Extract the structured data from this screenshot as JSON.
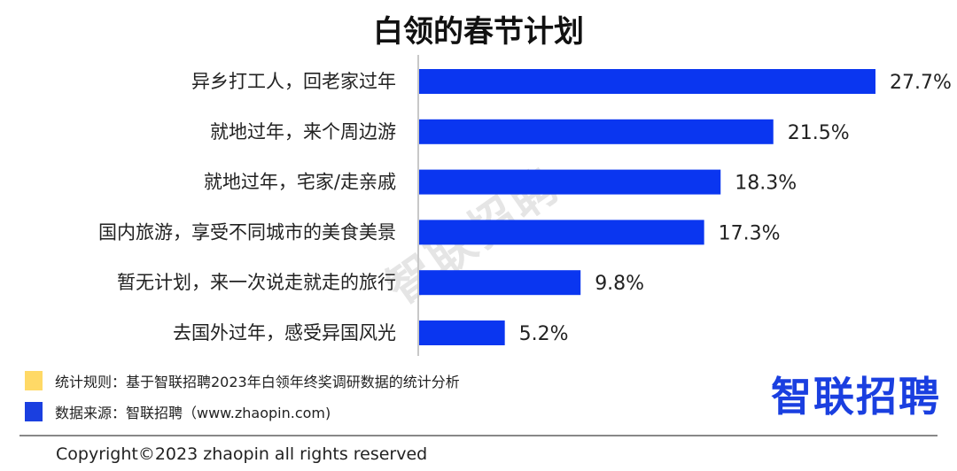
{
  "chart_data": {
    "type": "bar",
    "orientation": "horizontal",
    "title": "白领的春节计划",
    "categories": [
      "异乡打工人，回老家过年",
      "就地过年，来个周边游",
      "就地过年，宅家/走亲戚",
      "国内旅游，享受不同城市的美食美景",
      "暂无计划，来一次说走就走的旅行",
      "去国外过年，感受异国风光"
    ],
    "values": [
      27.7,
      21.5,
      18.3,
      17.3,
      9.8,
      5.2
    ],
    "data_labels": [
      "27.7%",
      "21.5%",
      "18.3%",
      "17.3%",
      "9.8%",
      "5.2%"
    ],
    "unit": "%",
    "bar_color": "#0a36f0",
    "grid": false
  },
  "watermark": "智联招聘",
  "legend": [
    {
      "color": "#ffd966",
      "text": "统计规则：基于智联招聘2023年白领年终奖调研数据的统计分析"
    },
    {
      "color": "#1a3fe0",
      "text": "数据来源：智联招聘（www.zhaopin.com)"
    }
  ],
  "logo": "智联招聘",
  "copyright": "Copyright©2023 zhaopin all rights reserved"
}
